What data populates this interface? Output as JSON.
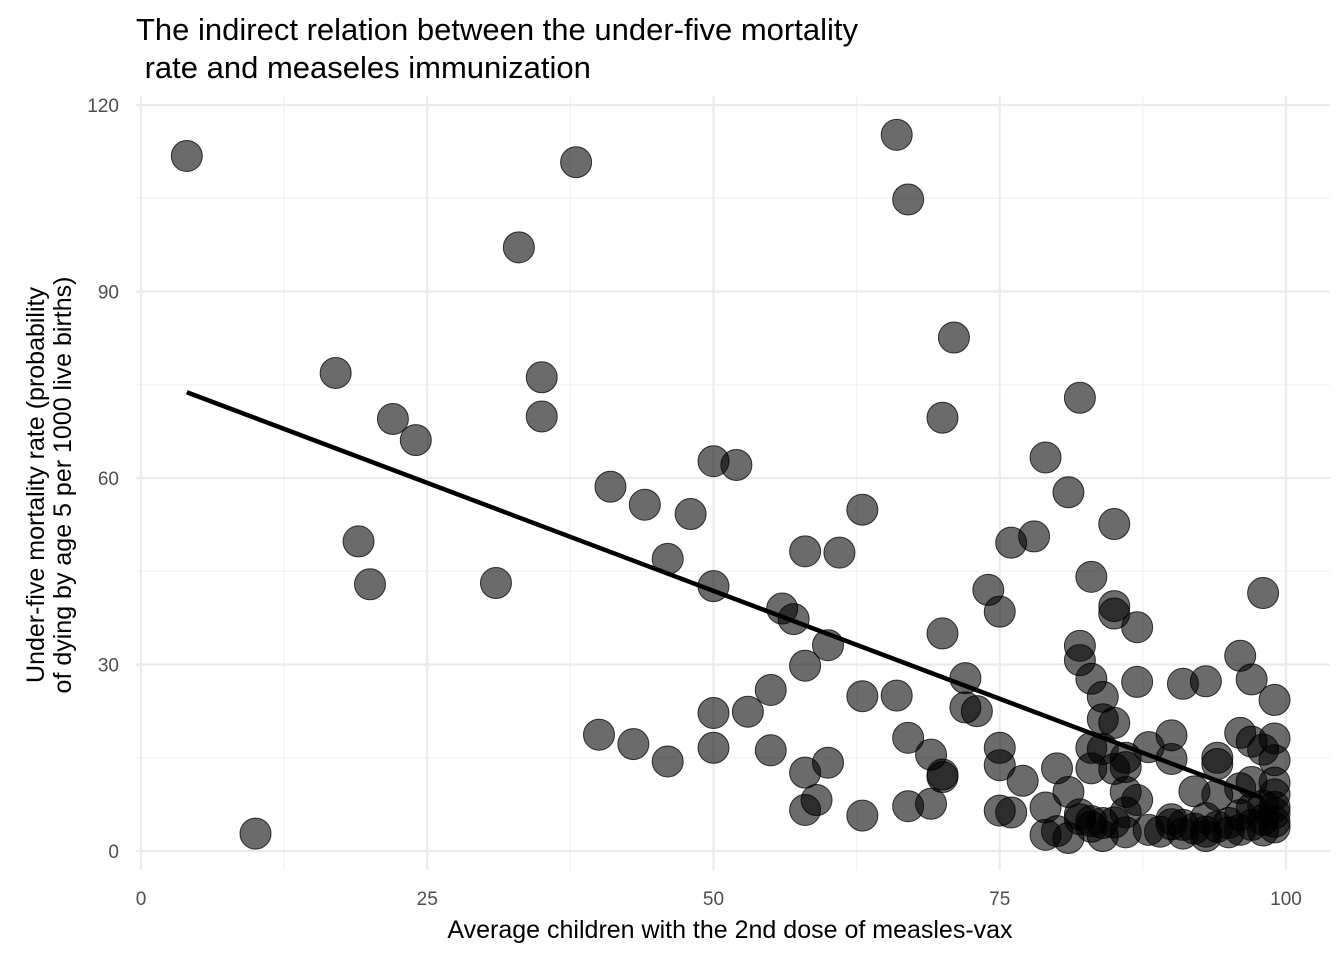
{
  "chart_data": {
    "type": "scatter",
    "title_lines": [
      "The indirect relation between the under-five mortality",
      " rate and measeles immunization"
    ],
    "xlabel": "Average children with the 2nd dose of measles-vax",
    "ylabel_lines": [
      "Under-five mortality rate (probability",
      "of dying by age 5 per 1000 live births)"
    ],
    "xlim": [
      0,
      100
    ],
    "ylim": [
      -3,
      120
    ],
    "x_ticks": [
      0,
      25,
      50,
      75,
      100
    ],
    "y_ticks": [
      0,
      30,
      60,
      90,
      120
    ],
    "x_tick_labels": [
      "0",
      "25",
      "50",
      "75",
      "100"
    ],
    "y_tick_labels": [
      "0",
      "30",
      "60",
      "90",
      "120"
    ],
    "grid": true,
    "point_color": "#000000",
    "point_opacity": 0.6,
    "trend_line": {
      "x": [
        4,
        98
      ],
      "y": [
        73.8,
        8.5
      ]
    },
    "points": [
      [
        4,
        111.8
      ],
      [
        10,
        2.8
      ],
      [
        17,
        76.9
      ],
      [
        19,
        49.8
      ],
      [
        20,
        42.9
      ],
      [
        22,
        69.5
      ],
      [
        24,
        66.1
      ],
      [
        31,
        43.1
      ],
      [
        33,
        97.1
      ],
      [
        35,
        76.2
      ],
      [
        35,
        69.9
      ],
      [
        38,
        110.8
      ],
      [
        40,
        18.7
      ],
      [
        41,
        58.6
      ],
      [
        43,
        17.2
      ],
      [
        44,
        55.7
      ],
      [
        46,
        14.4
      ],
      [
        46,
        47.0
      ],
      [
        48,
        54.2
      ],
      [
        50,
        62.7
      ],
      [
        50,
        42.6
      ],
      [
        50,
        22.2
      ],
      [
        50,
        16.6
      ],
      [
        52,
        62.1
      ],
      [
        53,
        22.4
      ],
      [
        55,
        25.9
      ],
      [
        55,
        16.2
      ],
      [
        56,
        39.0
      ],
      [
        57,
        37.3
      ],
      [
        58,
        48.2
      ],
      [
        58,
        29.8
      ],
      [
        58,
        12.6
      ],
      [
        58,
        6.6
      ],
      [
        59,
        8.2
      ],
      [
        60,
        33.1
      ],
      [
        60,
        14.2
      ],
      [
        61,
        48.0
      ],
      [
        63,
        54.9
      ],
      [
        63,
        24.9
      ],
      [
        63,
        5.7
      ],
      [
        66,
        115.2
      ],
      [
        66,
        25.0
      ],
      [
        67,
        104.8
      ],
      [
        67,
        18.2
      ],
      [
        67,
        7.2
      ],
      [
        69,
        15.5
      ],
      [
        69,
        7.6
      ],
      [
        70,
        69.7
      ],
      [
        70,
        35.0
      ],
      [
        70,
        12.3
      ],
      [
        70,
        11.9
      ],
      [
        71,
        82.6
      ],
      [
        72,
        27.8
      ],
      [
        72,
        23.1
      ],
      [
        73,
        22.5
      ],
      [
        74,
        42.0
      ],
      [
        75,
        38.5
      ],
      [
        75,
        16.6
      ],
      [
        75,
        13.8
      ],
      [
        75,
        6.5
      ],
      [
        76,
        49.6
      ],
      [
        76,
        6.2
      ],
      [
        77,
        11.3
      ],
      [
        78,
        50.6
      ],
      [
        79,
        63.3
      ],
      [
        79,
        7.0
      ],
      [
        79,
        2.6
      ],
      [
        80,
        13.3
      ],
      [
        80,
        3.2
      ],
      [
        81,
        57.7
      ],
      [
        81,
        9.5
      ],
      [
        81,
        2.1
      ],
      [
        82,
        72.9
      ],
      [
        82,
        33.0
      ],
      [
        82,
        30.7
      ],
      [
        82,
        5.9
      ],
      [
        82,
        5.1
      ],
      [
        83,
        44.1
      ],
      [
        83,
        27.7
      ],
      [
        83,
        16.6
      ],
      [
        83,
        13.3
      ],
      [
        83,
        4.8
      ],
      [
        83,
        3.9
      ],
      [
        84,
        24.8
      ],
      [
        84,
        21.2
      ],
      [
        84,
        16.4
      ],
      [
        84,
        4.5
      ],
      [
        84,
        2.4
      ],
      [
        85,
        52.6
      ],
      [
        85,
        39.4
      ],
      [
        85,
        38.2
      ],
      [
        85,
        20.6
      ],
      [
        85,
        13.2
      ],
      [
        85,
        4.6
      ],
      [
        86,
        15.0
      ],
      [
        86,
        13.5
      ],
      [
        86,
        9.5
      ],
      [
        86,
        6.2
      ],
      [
        86,
        3.0
      ],
      [
        87,
        36.0
      ],
      [
        87,
        27.2
      ],
      [
        87,
        8.2
      ],
      [
        88,
        16.7
      ],
      [
        88,
        3.4
      ],
      [
        89,
        3.1
      ],
      [
        90,
        18.6
      ],
      [
        90,
        14.8
      ],
      [
        90,
        5.1
      ],
      [
        90,
        4.3
      ],
      [
        91,
        26.9
      ],
      [
        91,
        4.2
      ],
      [
        91,
        2.8
      ],
      [
        92,
        9.6
      ],
      [
        92,
        3.6
      ],
      [
        93,
        27.3
      ],
      [
        93,
        5.3
      ],
      [
        93,
        3.1
      ],
      [
        93,
        2.4
      ],
      [
        94,
        15.0
      ],
      [
        94,
        14.0
      ],
      [
        94,
        9.0
      ],
      [
        94,
        3.9
      ],
      [
        95,
        4.5
      ],
      [
        95,
        3.0
      ],
      [
        96,
        31.4
      ],
      [
        96,
        19.0
      ],
      [
        96,
        10.1
      ],
      [
        96,
        5.8
      ],
      [
        96,
        3.4
      ],
      [
        97,
        27.6
      ],
      [
        97,
        17.6
      ],
      [
        97,
        11.1
      ],
      [
        97,
        6.8
      ],
      [
        97,
        4.2
      ],
      [
        98,
        41.5
      ],
      [
        98,
        16.3
      ],
      [
        98,
        7.3
      ],
      [
        98,
        5.0
      ],
      [
        98,
        3.3
      ],
      [
        99,
        24.3
      ],
      [
        99,
        18.1
      ],
      [
        99,
        14.6
      ],
      [
        99,
        11.0
      ],
      [
        99,
        9.1
      ],
      [
        99,
        7.1
      ],
      [
        99,
        6.1
      ],
      [
        99,
        4.7
      ],
      [
        99,
        3.8
      ]
    ]
  }
}
